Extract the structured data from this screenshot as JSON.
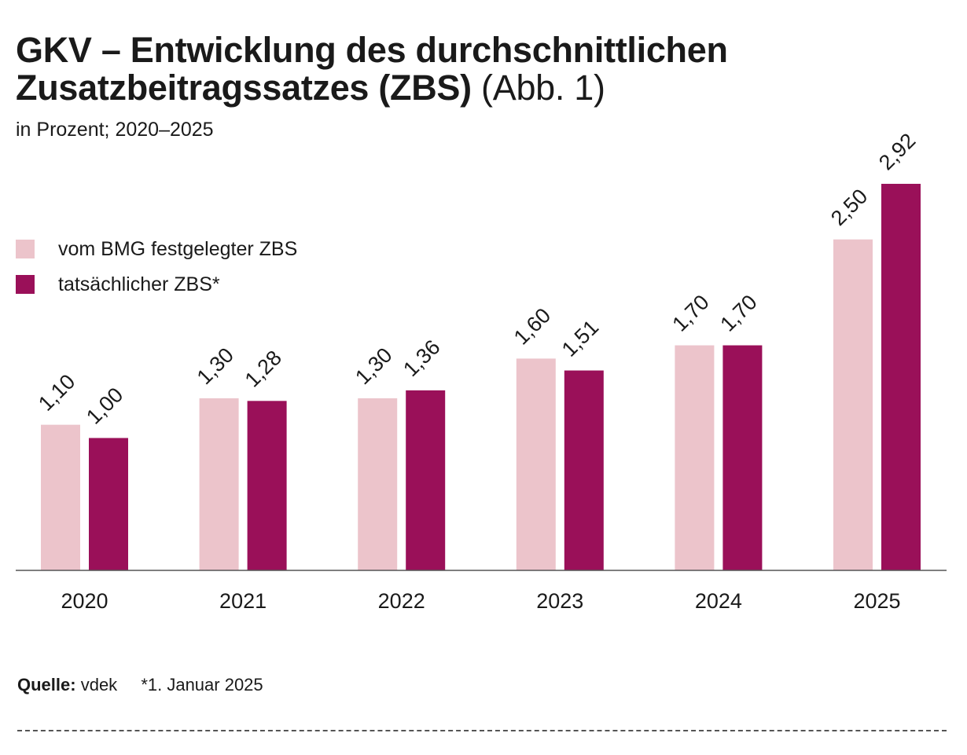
{
  "colors": {
    "bmg": "#ecc4cb",
    "actual": "#9a1059",
    "axis": "#555555"
  },
  "legend": {
    "bmg_label": "vom BMG festgelegter ZBS",
    "actual_label": "tatsächlicher ZBS*"
  },
  "footer": {
    "source_label": "Quelle:",
    "source_value": "vdek",
    "note": "*1. Januar 2025"
  },
  "chart_data": {
    "type": "bar",
    "title_main": "GKV – Entwicklung des durchschnittlichen Zusatzbeitragssatzes (ZBS)",
    "title_suffix": "(Abb. 1)",
    "subtitle": "in Prozent; 2020–2025",
    "categories": [
      "2020",
      "2021",
      "2022",
      "2023",
      "2024",
      "2025"
    ],
    "series": [
      {
        "name": "vom BMG festgelegter ZBS",
        "values": [
          1.1,
          1.3,
          1.3,
          1.6,
          1.7,
          2.5
        ],
        "labels": [
          "1,10",
          "1,30",
          "1,30",
          "1,60",
          "1,70",
          "2,50"
        ]
      },
      {
        "name": "tatsächlicher ZBS*",
        "values": [
          1.0,
          1.28,
          1.36,
          1.51,
          1.7,
          2.92
        ],
        "labels": [
          "1,00",
          "1,28",
          "1,36",
          "1,51",
          "1,70",
          "2,92"
        ]
      }
    ],
    "xlabel": "",
    "ylabel": "",
    "ylim": [
      0,
      3.0
    ],
    "grid": false,
    "legend_position": "top-left"
  }
}
